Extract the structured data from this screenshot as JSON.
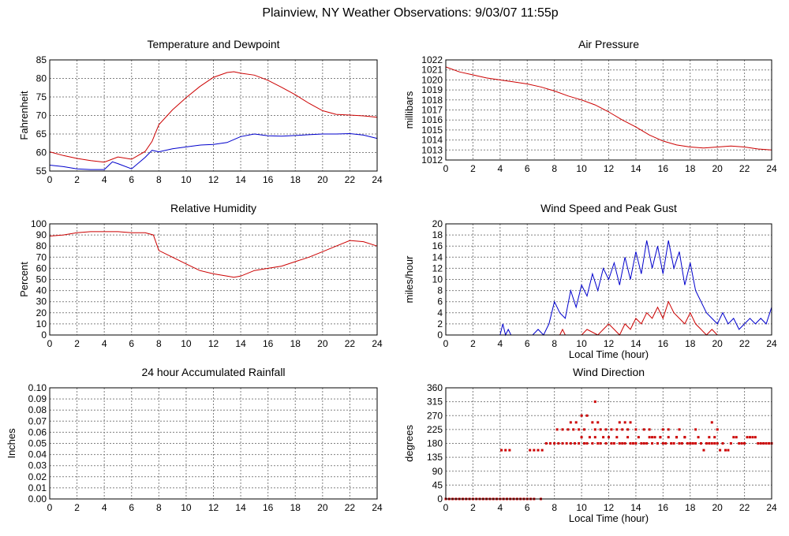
{
  "page": {
    "title": "Plainview, NY Weather Observations: 9/03/07 11:55p",
    "colors": {
      "red": "#cc0000",
      "blue": "#0000cc",
      "grid": "#808080",
      "frame": "#000000"
    }
  },
  "chart_data": [
    {
      "id": "temp",
      "type": "line",
      "title": "Temperature and Dewpoint",
      "xlabel": "",
      "ylabel": "Fahrenheit",
      "xlim": [
        0,
        24
      ],
      "ylim": [
        55,
        85
      ],
      "xticks": [
        0,
        2,
        4,
        6,
        8,
        10,
        12,
        14,
        16,
        18,
        20,
        22,
        24
      ],
      "yticks": [
        55,
        60,
        65,
        70,
        75,
        80,
        85
      ],
      "grid": true,
      "series": [
        {
          "color": "#cc0000",
          "x": [
            0,
            1,
            2,
            3,
            4,
            5,
            6,
            7,
            7.5,
            8,
            9,
            10,
            11,
            12,
            13,
            13.5,
            14,
            15,
            16,
            17,
            18,
            19,
            20,
            21,
            22,
            23,
            24
          ],
          "y": [
            60.2,
            59.2,
            58.4,
            57.8,
            57.4,
            58.8,
            58.2,
            60.3,
            63,
            67.5,
            71.5,
            74.8,
            77.8,
            80.3,
            81.6,
            81.8,
            81.4,
            80.9,
            79.5,
            77.6,
            75.6,
            73.3,
            71.3,
            70.3,
            70.1,
            69.9,
            69.5
          ]
        },
        {
          "color": "#0000cc",
          "x": [
            0,
            1,
            2,
            3,
            4,
            4.6,
            5,
            6,
            7,
            7.5,
            8,
            9,
            10,
            11,
            12,
            13,
            13.5,
            14,
            15,
            16,
            17,
            18,
            19,
            20,
            21,
            22,
            23,
            24
          ],
          "y": [
            56.6,
            56.2,
            55.6,
            55.4,
            55.4,
            57.5,
            57.0,
            55.6,
            58.7,
            60.6,
            60.2,
            61.0,
            61.5,
            62.0,
            62.2,
            62.7,
            63.5,
            64.3,
            65.0,
            64.5,
            64.4,
            64.6,
            64.8,
            65.0,
            65.0,
            65.1,
            64.7,
            63.8
          ]
        }
      ]
    },
    {
      "id": "pressure",
      "type": "line",
      "title": "Air Pressure",
      "xlabel": "",
      "ylabel": "millibars",
      "xlim": [
        0,
        24
      ],
      "ylim": [
        1012,
        1022
      ],
      "xticks": [
        0,
        2,
        4,
        6,
        8,
        10,
        12,
        14,
        16,
        18,
        20,
        22,
        24
      ],
      "yticks": [
        1012,
        1013,
        1014,
        1015,
        1016,
        1017,
        1018,
        1019,
        1020,
        1021,
        1022
      ],
      "grid": true,
      "series": [
        {
          "color": "#cc0000",
          "x": [
            0,
            1,
            2,
            3,
            4,
            5,
            6,
            7,
            8,
            9,
            10,
            11,
            12,
            13,
            14,
            15,
            16,
            17,
            18,
            19,
            20,
            21,
            22,
            23,
            24
          ],
          "y": [
            1021.3,
            1020.8,
            1020.5,
            1020.2,
            1020.0,
            1019.8,
            1019.6,
            1019.3,
            1018.9,
            1018.4,
            1018.0,
            1017.5,
            1016.8,
            1016.0,
            1015.3,
            1014.5,
            1013.9,
            1013.5,
            1013.3,
            1013.2,
            1013.3,
            1013.4,
            1013.3,
            1013.1,
            1013.0
          ]
        }
      ]
    },
    {
      "id": "humidity",
      "type": "line",
      "title": "Relative Humidity",
      "xlabel": "",
      "ylabel": "Percent",
      "xlim": [
        0,
        24
      ],
      "ylim": [
        0,
        100
      ],
      "xticks": [
        0,
        2,
        4,
        6,
        8,
        10,
        12,
        14,
        16,
        18,
        20,
        22,
        24
      ],
      "yticks": [
        0,
        10,
        20,
        30,
        40,
        50,
        60,
        70,
        80,
        90,
        100
      ],
      "grid": true,
      "series": [
        {
          "color": "#cc0000",
          "x": [
            0,
            1,
            2,
            3,
            4,
            5,
            6,
            7,
            7.6,
            8,
            9,
            10,
            11,
            12,
            13,
            13.5,
            14,
            15,
            16,
            17,
            18,
            19,
            20,
            21,
            22,
            23,
            24
          ],
          "y": [
            89,
            90,
            92,
            93,
            93,
            93,
            92,
            92,
            90,
            76,
            70,
            64,
            58,
            55,
            53,
            52,
            53,
            58,
            60,
            62,
            66,
            70,
            75,
            80,
            85,
            84,
            80
          ]
        }
      ]
    },
    {
      "id": "wind",
      "type": "line",
      "title": "Wind Speed and Peak Gust",
      "xlabel": "Local Time (hour)",
      "ylabel": "miles/hour",
      "xlim": [
        0,
        24
      ],
      "ylim": [
        0,
        20
      ],
      "xticks": [
        0,
        2,
        4,
        6,
        8,
        10,
        12,
        14,
        16,
        18,
        20,
        22,
        24
      ],
      "yticks": [
        0,
        2,
        4,
        6,
        8,
        10,
        12,
        14,
        16,
        18,
        20
      ],
      "grid": true,
      "series": [
        {
          "color": "#0000cc",
          "x": [
            0,
            4.0,
            4.2,
            4.4,
            4.6,
            4.8,
            5.0,
            6.4,
            6.8,
            7.2,
            7.6,
            8.0,
            8.4,
            8.8,
            9.2,
            9.6,
            10.0,
            10.4,
            10.8,
            11.2,
            11.6,
            12.0,
            12.4,
            12.8,
            13.2,
            13.6,
            14.0,
            14.4,
            14.8,
            15.2,
            15.6,
            16.0,
            16.4,
            16.8,
            17.2,
            17.6,
            18.0,
            18.4,
            18.8,
            19.2,
            19.6,
            20.0,
            20.4,
            20.8,
            21.2,
            21.6,
            22.0,
            22.4,
            22.8,
            23.2,
            23.6,
            24.0
          ],
          "y": [
            0,
            0,
            2,
            0,
            1,
            0,
            0,
            0,
            1,
            0,
            2,
            6,
            4,
            3,
            8,
            5,
            9,
            7,
            11,
            8,
            12,
            10,
            13,
            9,
            14,
            10,
            15,
            11,
            17,
            12,
            16,
            11,
            17,
            12,
            15,
            9,
            13,
            8,
            6,
            4,
            3,
            2,
            4,
            2,
            3,
            1,
            2,
            3,
            2,
            3,
            2,
            5
          ]
        },
        {
          "color": "#cc0000",
          "x": [
            0,
            8.4,
            8.6,
            8.8,
            9.0,
            10.0,
            10.4,
            11.2,
            11.6,
            12.0,
            12.4,
            12.8,
            13.2,
            13.6,
            14.0,
            14.4,
            14.8,
            15.2,
            15.6,
            16.0,
            16.4,
            16.8,
            17.2,
            17.6,
            18.0,
            18.4,
            18.8,
            19.2,
            19.6,
            20.0,
            20.2,
            24.0
          ],
          "y": [
            0,
            0,
            1,
            0,
            0,
            0,
            1,
            0,
            1,
            2,
            1,
            0,
            2,
            1,
            3,
            2,
            4,
            3,
            5,
            3,
            6,
            4,
            3,
            2,
            4,
            2,
            1,
            0,
            1,
            0,
            0,
            0
          ]
        }
      ]
    },
    {
      "id": "rain",
      "type": "line",
      "title": "24 hour Accumulated Rainfall",
      "xlabel": "",
      "ylabel": "Inches",
      "xlim": [
        0,
        24
      ],
      "ylim": [
        0,
        0.1
      ],
      "xticks": [
        0,
        2,
        4,
        6,
        8,
        10,
        12,
        14,
        16,
        18,
        20,
        22,
        24
      ],
      "yticks": [
        "0.00",
        "0.01",
        "0.02",
        "0.03",
        "0.04",
        "0.05",
        "0.06",
        "0.07",
        "0.08",
        "0.09",
        "0.10"
      ],
      "grid": true,
      "series": [
        {
          "color": "#cc0000",
          "x": [
            0,
            24
          ],
          "y": [
            0,
            0
          ]
        }
      ]
    },
    {
      "id": "direction",
      "type": "scatter",
      "title": "Wind Direction",
      "xlabel": "Local Time (hour)",
      "ylabel": "degrees",
      "xlim": [
        0,
        24
      ],
      "ylim": [
        0,
        360
      ],
      "xticks": [
        0,
        2,
        4,
        6,
        8,
        10,
        12,
        14,
        16,
        18,
        20,
        22,
        24
      ],
      "yticks": [
        0,
        45,
        90,
        135,
        180,
        225,
        270,
        315,
        360
      ],
      "grid": true,
      "series": [
        {
          "color": "#cc0000",
          "x": [
            0,
            0.25,
            0.5,
            0.75,
            1,
            1.25,
            1.5,
            1.75,
            2,
            2.25,
            2.5,
            2.75,
            3,
            3.25,
            3.5,
            3.75,
            4,
            4.25,
            4.5,
            4.75,
            5,
            5.25,
            5.5,
            5.75,
            6,
            6.25,
            6.5,
            7.0,
            4.1,
            4.4,
            4.7,
            6.2,
            6.5,
            6.8,
            7.1,
            7.4,
            7.7,
            8.0,
            8.3,
            8.6,
            8.9,
            9.2,
            9.5,
            9.8,
            10.0,
            10.2,
            10.4,
            10.6,
            10.8,
            11.0,
            11.2,
            11.4,
            11.6,
            11.8,
            12.0,
            12.2,
            12.4,
            12.6,
            12.8,
            13.0,
            13.2,
            13.4,
            13.6,
            13.8,
            14.0,
            14.2,
            14.4,
            14.6,
            14.8,
            15.0,
            15.2,
            15.4,
            15.6,
            15.8,
            16.0,
            16.2,
            16.4,
            16.6,
            16.8,
            17.0,
            17.2,
            17.4,
            17.6,
            17.8,
            18.0,
            18.2,
            18.4,
            18.6,
            18.8,
            19.0,
            19.2,
            19.4,
            19.6,
            19.8,
            20.0,
            20.2,
            20.4,
            20.6,
            20.8,
            21.0,
            21.2,
            21.4,
            21.6,
            21.8,
            22.0,
            22.2,
            22.4,
            22.6,
            22.8,
            23.0,
            23.2,
            23.4,
            23.6,
            23.8,
            24.0,
            8.2,
            8.6,
            9.0,
            9.4,
            9.8,
            10.2,
            11.0,
            11.4,
            11.8,
            12.2,
            12.6,
            13.0,
            13.4,
            14.0,
            14.6,
            15.2,
            15.8,
            16.4,
            17.0,
            17.6,
            18.2,
            18.8,
            19.4,
            19.8,
            10.0,
            10.4,
            10.8,
            11.2,
            11.0,
            9.2,
            9.6,
            12.8,
            13.2,
            13.6,
            15.0,
            16.0,
            17.2,
            18.4,
            19.6,
            20.0
          ],
          "y": [
            0,
            0,
            0,
            0,
            0,
            0,
            0,
            0,
            0,
            0,
            0,
            0,
            0,
            0,
            0,
            0,
            0,
            0,
            0,
            0,
            0,
            0,
            0,
            0,
            0,
            0,
            0,
            0,
            158,
            158,
            158,
            158,
            158,
            158,
            158,
            180,
            180,
            180,
            180,
            180,
            180,
            180,
            180,
            180,
            200,
            180,
            180,
            200,
            180,
            200,
            180,
            180,
            200,
            180,
            200,
            180,
            180,
            200,
            180,
            180,
            180,
            200,
            180,
            180,
            180,
            200,
            180,
            180,
            180,
            200,
            180,
            200,
            180,
            200,
            180,
            180,
            200,
            180,
            180,
            200,
            180,
            180,
            200,
            180,
            180,
            180,
            180,
            200,
            180,
            158,
            180,
            200,
            180,
            180,
            180,
            158,
            180,
            158,
            158,
            180,
            200,
            200,
            180,
            180,
            180,
            200,
            200,
            200,
            200,
            180,
            180,
            180,
            180,
            180,
            180,
            225,
            225,
            225,
            225,
            225,
            225,
            225,
            225,
            225,
            225,
            225,
            225,
            225,
            225,
            225,
            200,
            200,
            225,
            200,
            200,
            180,
            180,
            180,
            200,
            270,
            270,
            248,
            248,
            315,
            248,
            248,
            248,
            248,
            248,
            225,
            225,
            225,
            225,
            248,
            225
          ]
        }
      ]
    }
  ]
}
